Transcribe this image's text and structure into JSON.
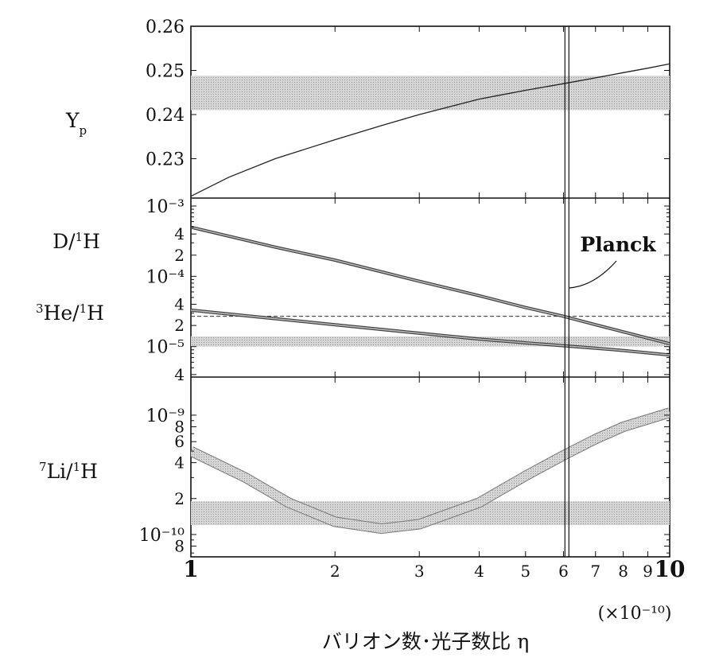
{
  "chart_data": {
    "type": "line",
    "x_scale": "log",
    "xlim": [
      1,
      10
    ],
    "x_ticks": [
      "1",
      "2",
      "3",
      "4",
      "5",
      "6",
      "7",
      "8",
      "9",
      "10"
    ],
    "x_multiplier_label": "(×10⁻¹⁰)",
    "xlabel": "バリオン数･光子数比 η",
    "grid": false,
    "planck": {
      "label": "Planck",
      "eta": 6.1
    },
    "panels": [
      {
        "ylabel_parts": [
          "Y",
          "p"
        ],
        "y_scale": "linear",
        "ylim": [
          0.22,
          0.26
        ],
        "y_ticks": [
          "0.26",
          "0.25",
          "0.24",
          "0.23"
        ],
        "y_tick_values": [
          0.26,
          0.25,
          0.24,
          0.23
        ],
        "obs_band": [
          0.241,
          0.2488
        ],
        "series": [
          {
            "x": [
              1,
              1.2,
              1.5,
              2,
              2.5,
              3,
              4,
              5,
              6,
              7,
              8,
              9,
              10
            ],
            "y": [
              0.2215,
              0.2258,
              0.23,
              0.2343,
              0.2375,
              0.24,
              0.2435,
              0.2455,
              0.247,
              0.2483,
              0.2495,
              0.2505,
              0.2515
            ]
          }
        ]
      },
      {
        "ylabel_D": [
          "D/",
          "1",
          "H"
        ],
        "ylabel_He": [
          "3",
          "He/",
          "1",
          "H"
        ],
        "y_scale": "log",
        "ylim": [
          3.5e-06,
          0.001
        ],
        "y_ticks": [
          "10⁻³",
          "4",
          "2",
          "10⁻⁴",
          "4",
          "2",
          "10⁻⁵",
          "4"
        ],
        "y_tick_values": [
          0.001,
          0.0004,
          0.0002,
          0.0001,
          4e-05,
          2e-05,
          1e-05,
          4e-06
        ],
        "obs_band": [
          1e-05,
          1.4e-05
        ],
        "dashed_ref": 2.7e-05,
        "series": [
          {
            "x": [
              1,
              1.5,
              2,
              3,
              4,
              5,
              6,
              7,
              8,
              10
            ],
            "y": [
              0.0005,
              0.00026,
              0.00017,
              8.5e-05,
              5.3e-05,
              3.6e-05,
              2.7e-05,
              2.05e-05,
              1.62e-05,
              1.1e-05
            ]
          },
          {
            "x": [
              1,
              1.5,
              2,
              3,
              4,
              5,
              6,
              7,
              8,
              10
            ],
            "y": [
              3.3e-05,
              2.5e-05,
              2.05e-05,
              1.55e-05,
              1.28e-05,
              1.13e-05,
              1.03e-05,
              9.5e-06,
              8.8e-06,
              7.6e-06
            ]
          }
        ]
      },
      {
        "ylabel_parts": [
          "7",
          "Li/",
          "1",
          "H"
        ],
        "y_scale": "log",
        "ylim": [
          6.5e-11,
          1.4e-09
        ],
        "y_ticks": [
          "10⁻⁹",
          "8",
          "6",
          "4",
          "2",
          "10⁻¹⁰",
          "8"
        ],
        "y_tick_values": [
          1e-09,
          8e-10,
          6e-10,
          4e-10,
          2e-10,
          1e-10,
          8e-11
        ],
        "obs_band": [
          1.2e-10,
          1.9e-10
        ],
        "series": [
          {
            "x": [
              1,
              1.3,
              1.6,
              2,
              2.5,
              3,
              4,
              5,
              6,
              7,
              8,
              10
            ],
            "y": [
              5e-10,
              3e-10,
              1.85e-10,
              1.28e-10,
              1.12e-10,
              1.22e-10,
              1.85e-10,
              3.1e-10,
              4.6e-10,
              6.3e-10,
              8e-10,
              1.05e-09
            ]
          }
        ]
      }
    ]
  }
}
